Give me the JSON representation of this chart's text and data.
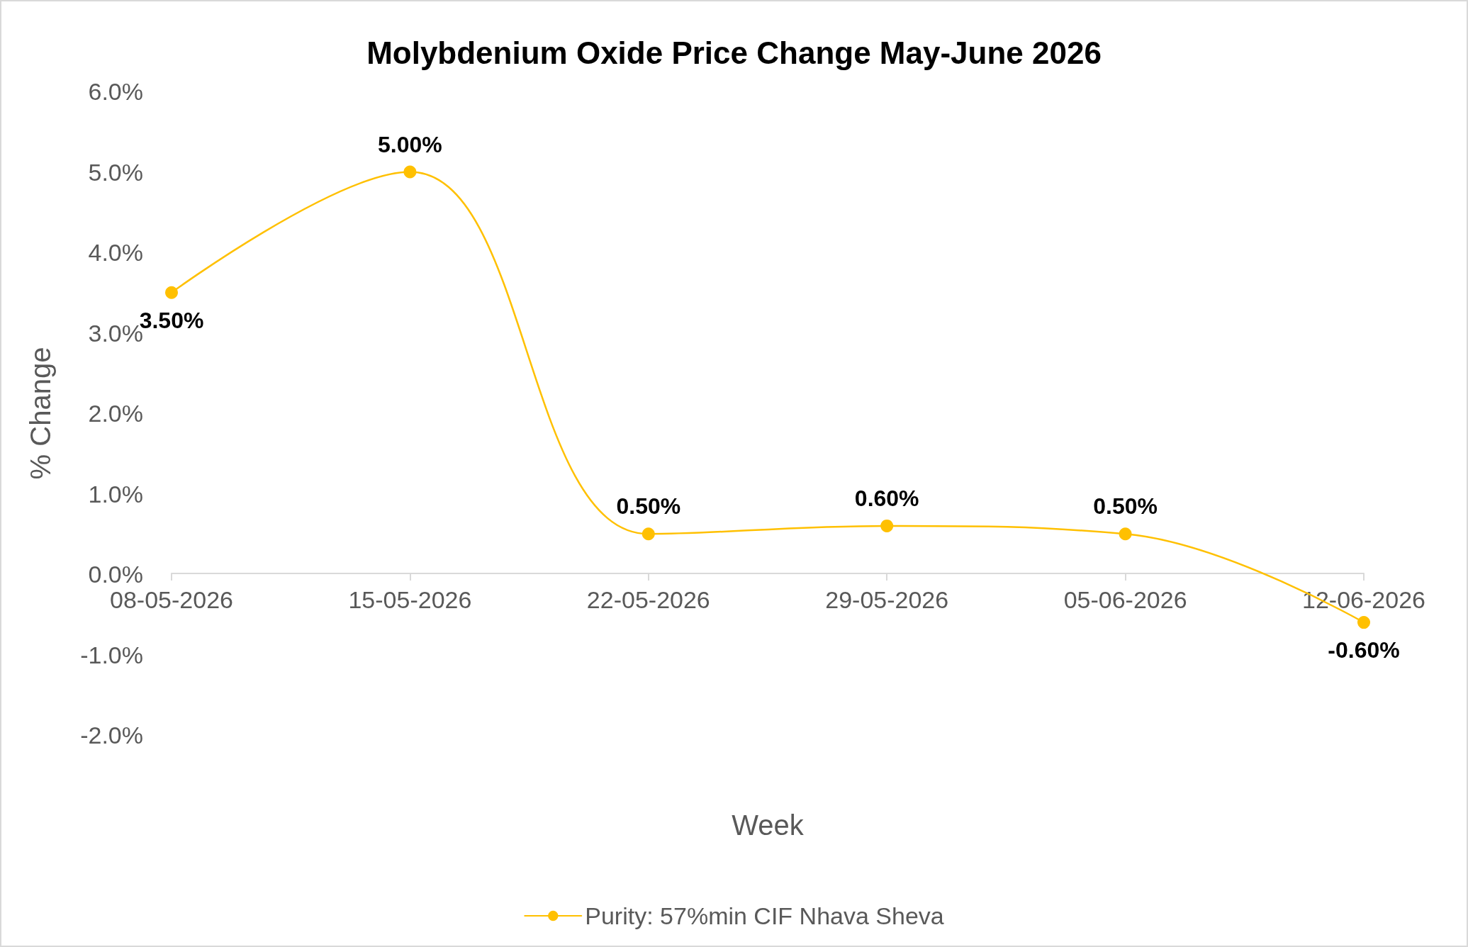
{
  "chart_data": {
    "type": "line",
    "title": "Molybdenium Oxide Price Change May-June 2026",
    "xlabel": "Week",
    "ylabel": "% Change",
    "categories": [
      "08-05-2026",
      "15-05-2026",
      "22-05-2026",
      "29-05-2026",
      "05-06-2026",
      "12-06-2026"
    ],
    "series": [
      {
        "name": "Purity: 57%min CIF Nhava Sheva",
        "color": "#ffc000",
        "values": [
          3.5,
          5.0,
          0.5,
          0.6,
          0.5,
          -0.6
        ],
        "value_labels": [
          "3.50%",
          "5.00%",
          "0.50%",
          "0.60%",
          "0.50%",
          "-0.60%"
        ]
      }
    ],
    "ylim": [
      -2,
      6
    ],
    "yticks": [
      {
        "value": -2,
        "label": "-2.0%"
      },
      {
        "value": -1,
        "label": "-1.0%"
      },
      {
        "value": 0,
        "label": "0.0%"
      },
      {
        "value": 1,
        "label": "1.0%"
      },
      {
        "value": 2,
        "label": "2.0%"
      },
      {
        "value": 3,
        "label": "3.0%"
      },
      {
        "value": 4,
        "label": "4.0%"
      },
      {
        "value": 5,
        "label": "5.0%"
      },
      {
        "value": 6,
        "label": "6.0%"
      }
    ],
    "grid": false,
    "legend": "bottom",
    "marker": "circle",
    "line_style": "solid"
  }
}
